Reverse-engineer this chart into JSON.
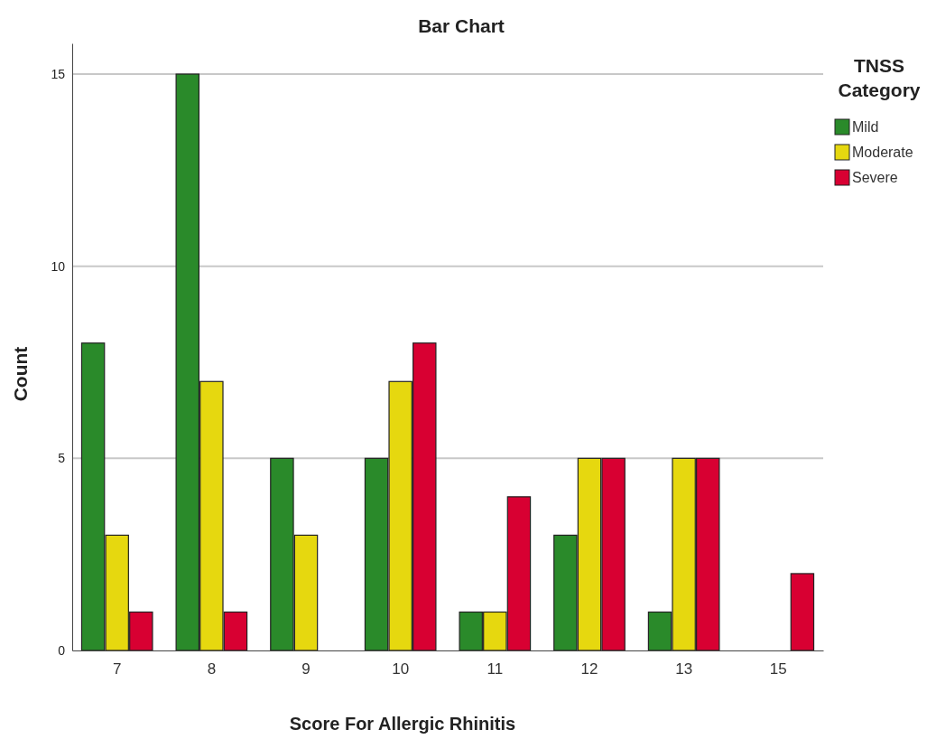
{
  "chart_data": {
    "type": "bar",
    "title": "Bar Chart",
    "xlabel": "Score For Allergic Rhinitis",
    "ylabel": "Count",
    "legend_title": "TNSS Category",
    "categories": [
      "7",
      "8",
      "9",
      "10",
      "11",
      "12",
      "13",
      "15"
    ],
    "series": [
      {
        "name": "Mild",
        "color": "#2a8a2a",
        "values": [
          8,
          15,
          5,
          5,
          1,
          3,
          1,
          null
        ]
      },
      {
        "name": "Moderate",
        "color": "#e6d80f",
        "values": [
          3,
          7,
          3,
          7,
          1,
          5,
          5,
          null
        ]
      },
      {
        "name": "Severe",
        "color": "#d80032",
        "values": [
          1,
          1,
          null,
          8,
          4,
          5,
          5,
          2
        ]
      }
    ],
    "ylim": [
      0,
      15.8
    ],
    "yticks": [
      0,
      5,
      10,
      15
    ],
    "grid": "y",
    "legend": "top right"
  }
}
